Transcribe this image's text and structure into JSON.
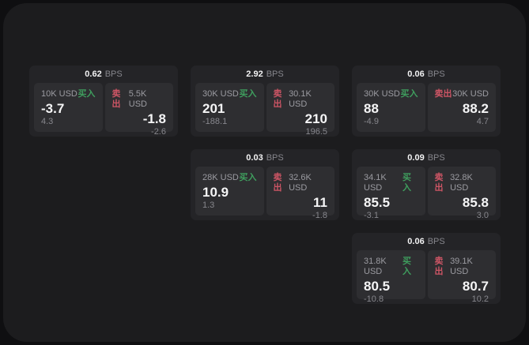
{
  "colors": {
    "backdrop": "#0f0f11",
    "surface": "#1c1c1e",
    "card": "#242427",
    "tile": "#2e2e31",
    "buy_green": "#3f9e5e",
    "sell_red": "#cd5565"
  },
  "labels": {
    "bps_unit": "BPS",
    "buy": "买入",
    "sell": "卖出"
  },
  "cards": [
    {
      "grid": {
        "row": 1,
        "col": 1
      },
      "bps": "0.62",
      "buy": {
        "amount": "10K USD",
        "value": "-3.7",
        "change": "4.3"
      },
      "sell": {
        "amount": "5.5K USD",
        "value": "-1.8",
        "change": "-2.6"
      }
    },
    {
      "grid": {
        "row": 1,
        "col": 2
      },
      "bps": "2.92",
      "buy": {
        "amount": "30K USD",
        "value": "201",
        "change": "-188.1"
      },
      "sell": {
        "amount": "30.1K USD",
        "value": "210",
        "change": "196.5"
      }
    },
    {
      "grid": {
        "row": 1,
        "col": 3
      },
      "bps": "0.06",
      "buy": {
        "amount": "30K USD",
        "value": "88",
        "change": "-4.9"
      },
      "sell": {
        "amount": "30K USD",
        "value": "88.2",
        "change": "4.7"
      }
    },
    {
      "grid": {
        "row": 2,
        "col": 2
      },
      "bps": "0.03",
      "buy": {
        "amount": "28K USD",
        "value": "10.9",
        "change": "1.3"
      },
      "sell": {
        "amount": "32.6K USD",
        "value": "11",
        "change": "-1.8"
      }
    },
    {
      "grid": {
        "row": 2,
        "col": 3
      },
      "bps": "0.09",
      "buy": {
        "amount": "34.1K USD",
        "value": "85.5",
        "change": "-3.1"
      },
      "sell": {
        "amount": "32.8K USD",
        "value": "85.8",
        "change": "3.0"
      }
    },
    {
      "grid": {
        "row": 3,
        "col": 3
      },
      "bps": "0.06",
      "buy": {
        "amount": "31.8K USD",
        "value": "80.5",
        "change": "-10.8"
      },
      "sell": {
        "amount": "39.1K USD",
        "value": "80.7",
        "change": "10.2"
      }
    }
  ]
}
